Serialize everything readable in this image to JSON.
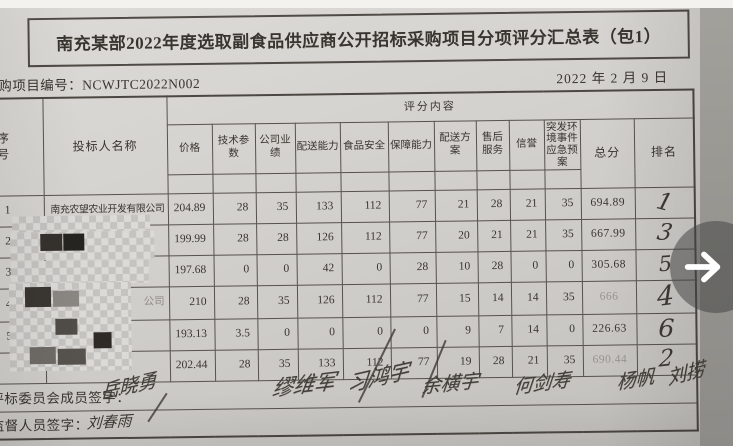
{
  "document": {
    "title": "南充某部2022年度选取副食品供应商公开招标采购项目分项评分汇总表（包1）",
    "project_no_label": "采购项目编号：",
    "project_no": "NCWJTC2022N002",
    "date": "2022 年 2 月 9 日"
  },
  "table": {
    "seq_header": "序号",
    "bidder_header": "投标人名称",
    "group_header": "评分内容",
    "score_columns": [
      "价格",
      "技术参数",
      "公司业绩",
      "配送能力",
      "食品安全",
      "保障能力",
      "配送方案",
      "售后服务",
      "信誉",
      "突发环境事件应急预案"
    ],
    "total_header": "总分",
    "rank_header": "排名",
    "rows": [
      {
        "seq": "1",
        "bidder": "南充农望农业开发有限公司",
        "censored": false,
        "scores": [
          "204.89",
          "28",
          "35",
          "133",
          "112",
          "77",
          "21",
          "28",
          "21",
          "35"
        ],
        "total": "694.89",
        "total_faint": false,
        "rank": "1"
      },
      {
        "seq": "2",
        "bidder": "",
        "censored": true,
        "scores": [
          "199.99",
          "28",
          "28",
          "126",
          "112",
          "77",
          "20",
          "21",
          "21",
          "35"
        ],
        "total": "667.99",
        "total_faint": false,
        "rank": "3"
      },
      {
        "seq": "3",
        "bidder": "",
        "censored": true,
        "scores": [
          "197.68",
          "0",
          "0",
          "42",
          "0",
          "28",
          "10",
          "28",
          "0",
          "0"
        ],
        "total": "305.68",
        "total_faint": false,
        "rank": "5"
      },
      {
        "seq": "4",
        "bidder": "",
        "bidder_remnant": "公司",
        "censored": true,
        "scores": [
          "210",
          "28",
          "35",
          "126",
          "112",
          "77",
          "15",
          "14",
          "14",
          "35"
        ],
        "total": "666",
        "total_faint": true,
        "rank": "4"
      },
      {
        "seq": "5",
        "bidder": "",
        "censored": true,
        "scores": [
          "193.13",
          "3.5",
          "0",
          "0",
          "0",
          "0",
          "9",
          "7",
          "14",
          "0"
        ],
        "total": "226.63",
        "total_faint": false,
        "rank": "6"
      },
      {
        "seq": "",
        "bidder": "",
        "censored": true,
        "scores": [
          "202.44",
          "28",
          "35",
          "133",
          "112",
          "77",
          "19",
          "28",
          "21",
          "35"
        ],
        "total": "690.44",
        "total_faint": true,
        "rank": "2"
      }
    ]
  },
  "signatures": {
    "committee_label": "评标委员会成员签字：",
    "committee": [
      "岳晓勇",
      "缪维军",
      "习鸿宇",
      "余横宇",
      "何剑寿",
      "杨帆",
      "刘捞"
    ],
    "supervisor_label": "监督人员签字：",
    "supervisor": "刘春雨"
  },
  "colors": {
    "paper": "#d2d0cc",
    "ink": "#38342f",
    "faint_ink": "#97938c",
    "table_border": "#56524d",
    "background_strip": "#96948f",
    "overlay_circle": "rgba(70,70,70,0.55)"
  }
}
